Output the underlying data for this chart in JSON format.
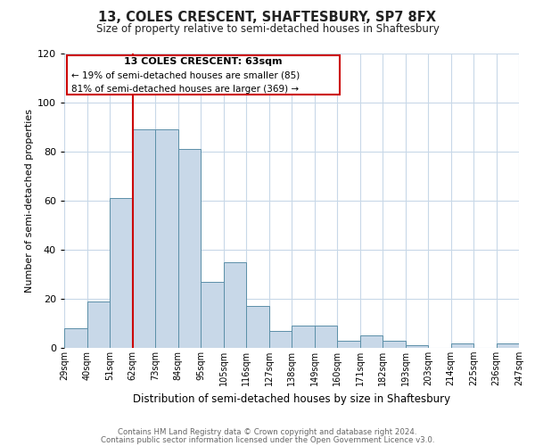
{
  "title": "13, COLES CRESCENT, SHAFTESBURY, SP7 8FX",
  "subtitle": "Size of property relative to semi-detached houses in Shaftesbury",
  "xlabel": "Distribution of semi-detached houses by size in Shaftesbury",
  "ylabel": "Number of semi-detached properties",
  "bin_labels": [
    "29sqm",
    "40sqm",
    "51sqm",
    "62sqm",
    "73sqm",
    "84sqm",
    "95sqm",
    "105sqm",
    "116sqm",
    "127sqm",
    "138sqm",
    "149sqm",
    "160sqm",
    "171sqm",
    "182sqm",
    "193sqm",
    "203sqm",
    "214sqm",
    "225sqm",
    "236sqm",
    "247sqm"
  ],
  "bar_values": [
    8,
    19,
    61,
    89,
    89,
    81,
    27,
    35,
    17,
    7,
    9,
    9,
    3,
    5,
    3,
    1,
    0,
    2,
    0,
    2
  ],
  "bar_color": "#c8d8e8",
  "bar_edge_color": "#5b8fa8",
  "ylim": [
    0,
    120
  ],
  "yticks": [
    0,
    20,
    40,
    60,
    80,
    100,
    120
  ],
  "property_line_x": 3,
  "property_line_color": "#cc0000",
  "annotation_title": "13 COLES CRESCENT: 63sqm",
  "annotation_line1": "← 19% of semi-detached houses are smaller (85)",
  "annotation_line2": "81% of semi-detached houses are larger (369) →",
  "annotation_box_color": "#cc0000",
  "footer1": "Contains HM Land Registry data © Crown copyright and database right 2024.",
  "footer2": "Contains public sector information licensed under the Open Government Licence v3.0.",
  "background_color": "#ffffff",
  "grid_color": "#c8d8e8"
}
